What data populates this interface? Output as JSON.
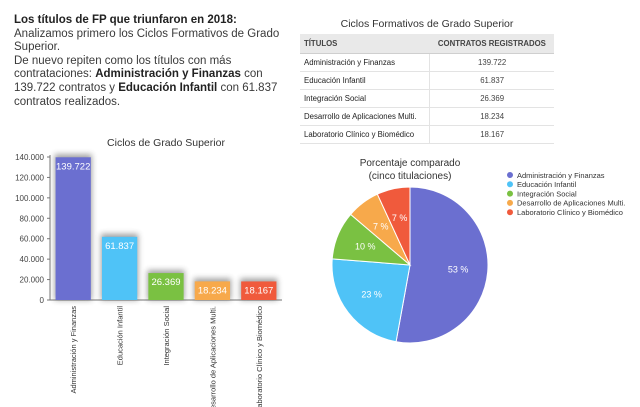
{
  "intro": {
    "heading": "Los títulos de FP que triunfaron en 2018:",
    "line1": "Analizamos primero los Ciclos Formativos de Grado Superior.",
    "line2": "De nuevo repiten como los títulos con más contrataciones: ",
    "highlight1": "Administración y Finanzas",
    "conn1": " con 139.722 contratos y ",
    "highlight2": "Educación Infantil",
    "conn2": " con 61.837 contratos realizados."
  },
  "table": {
    "title": "Ciclos Formativos de Grado Superior",
    "headers": [
      "TÍTULOS",
      "CONTRATOS REGISTRADOS"
    ],
    "rows": [
      {
        "title": "Administración y Finanzas",
        "value": "139.722"
      },
      {
        "title": "Educación Infantil",
        "value": "61.837"
      },
      {
        "title": "Integración Social",
        "value": "26.369"
      },
      {
        "title": "Desarrollo de Aplicaciones Multi.",
        "value": "18.234"
      },
      {
        "title": "Laboratorio Clínico y Biomédico",
        "value": "18.167"
      }
    ]
  },
  "colors": {
    "admin": "#6b6fd0",
    "infantil": "#4fc3f7",
    "integracion": "#7ac142",
    "desarrollo": "#f7a94b",
    "laboratorio": "#f05a3c"
  },
  "chart_data": [
    {
      "type": "bar",
      "title": "Ciclos de Grado Superior",
      "categories": [
        "Administración y Finanzas",
        "Educación Infantil",
        "Integración Social",
        "Desarrollo de Aplicaciones Multi.",
        "Laboratorio Clínico y Biomédico"
      ],
      "values": [
        139722,
        61837,
        26369,
        18234,
        18167
      ],
      "value_labels": [
        "139.722",
        "61.837",
        "26.369",
        "18.234",
        "18.167"
      ],
      "ylim": [
        0,
        140000
      ],
      "yticks": [
        0,
        20000,
        40000,
        60000,
        80000,
        100000,
        120000,
        140000
      ],
      "ytick_labels": [
        "0",
        "20.000",
        "40.000",
        "60.000",
        "80.000",
        "100.000",
        "120.000",
        "140.000"
      ],
      "grid": false
    },
    {
      "type": "pie",
      "title": "Porcentaje comparado",
      "subtitle": "(cinco titulaciones)",
      "labels": [
        "Administración y Finanzas",
        "Educación Infantil",
        "Integración Social",
        "Desarrollo de Aplicaciones Multi.",
        "Laboratorio Clínico y Biomédico"
      ],
      "values": [
        139722,
        61837,
        26369,
        18234,
        18167
      ],
      "percent_labels": [
        "53 %",
        "23 %",
        "10 %",
        "7 %",
        "7 %"
      ],
      "legend_position": "right"
    }
  ]
}
